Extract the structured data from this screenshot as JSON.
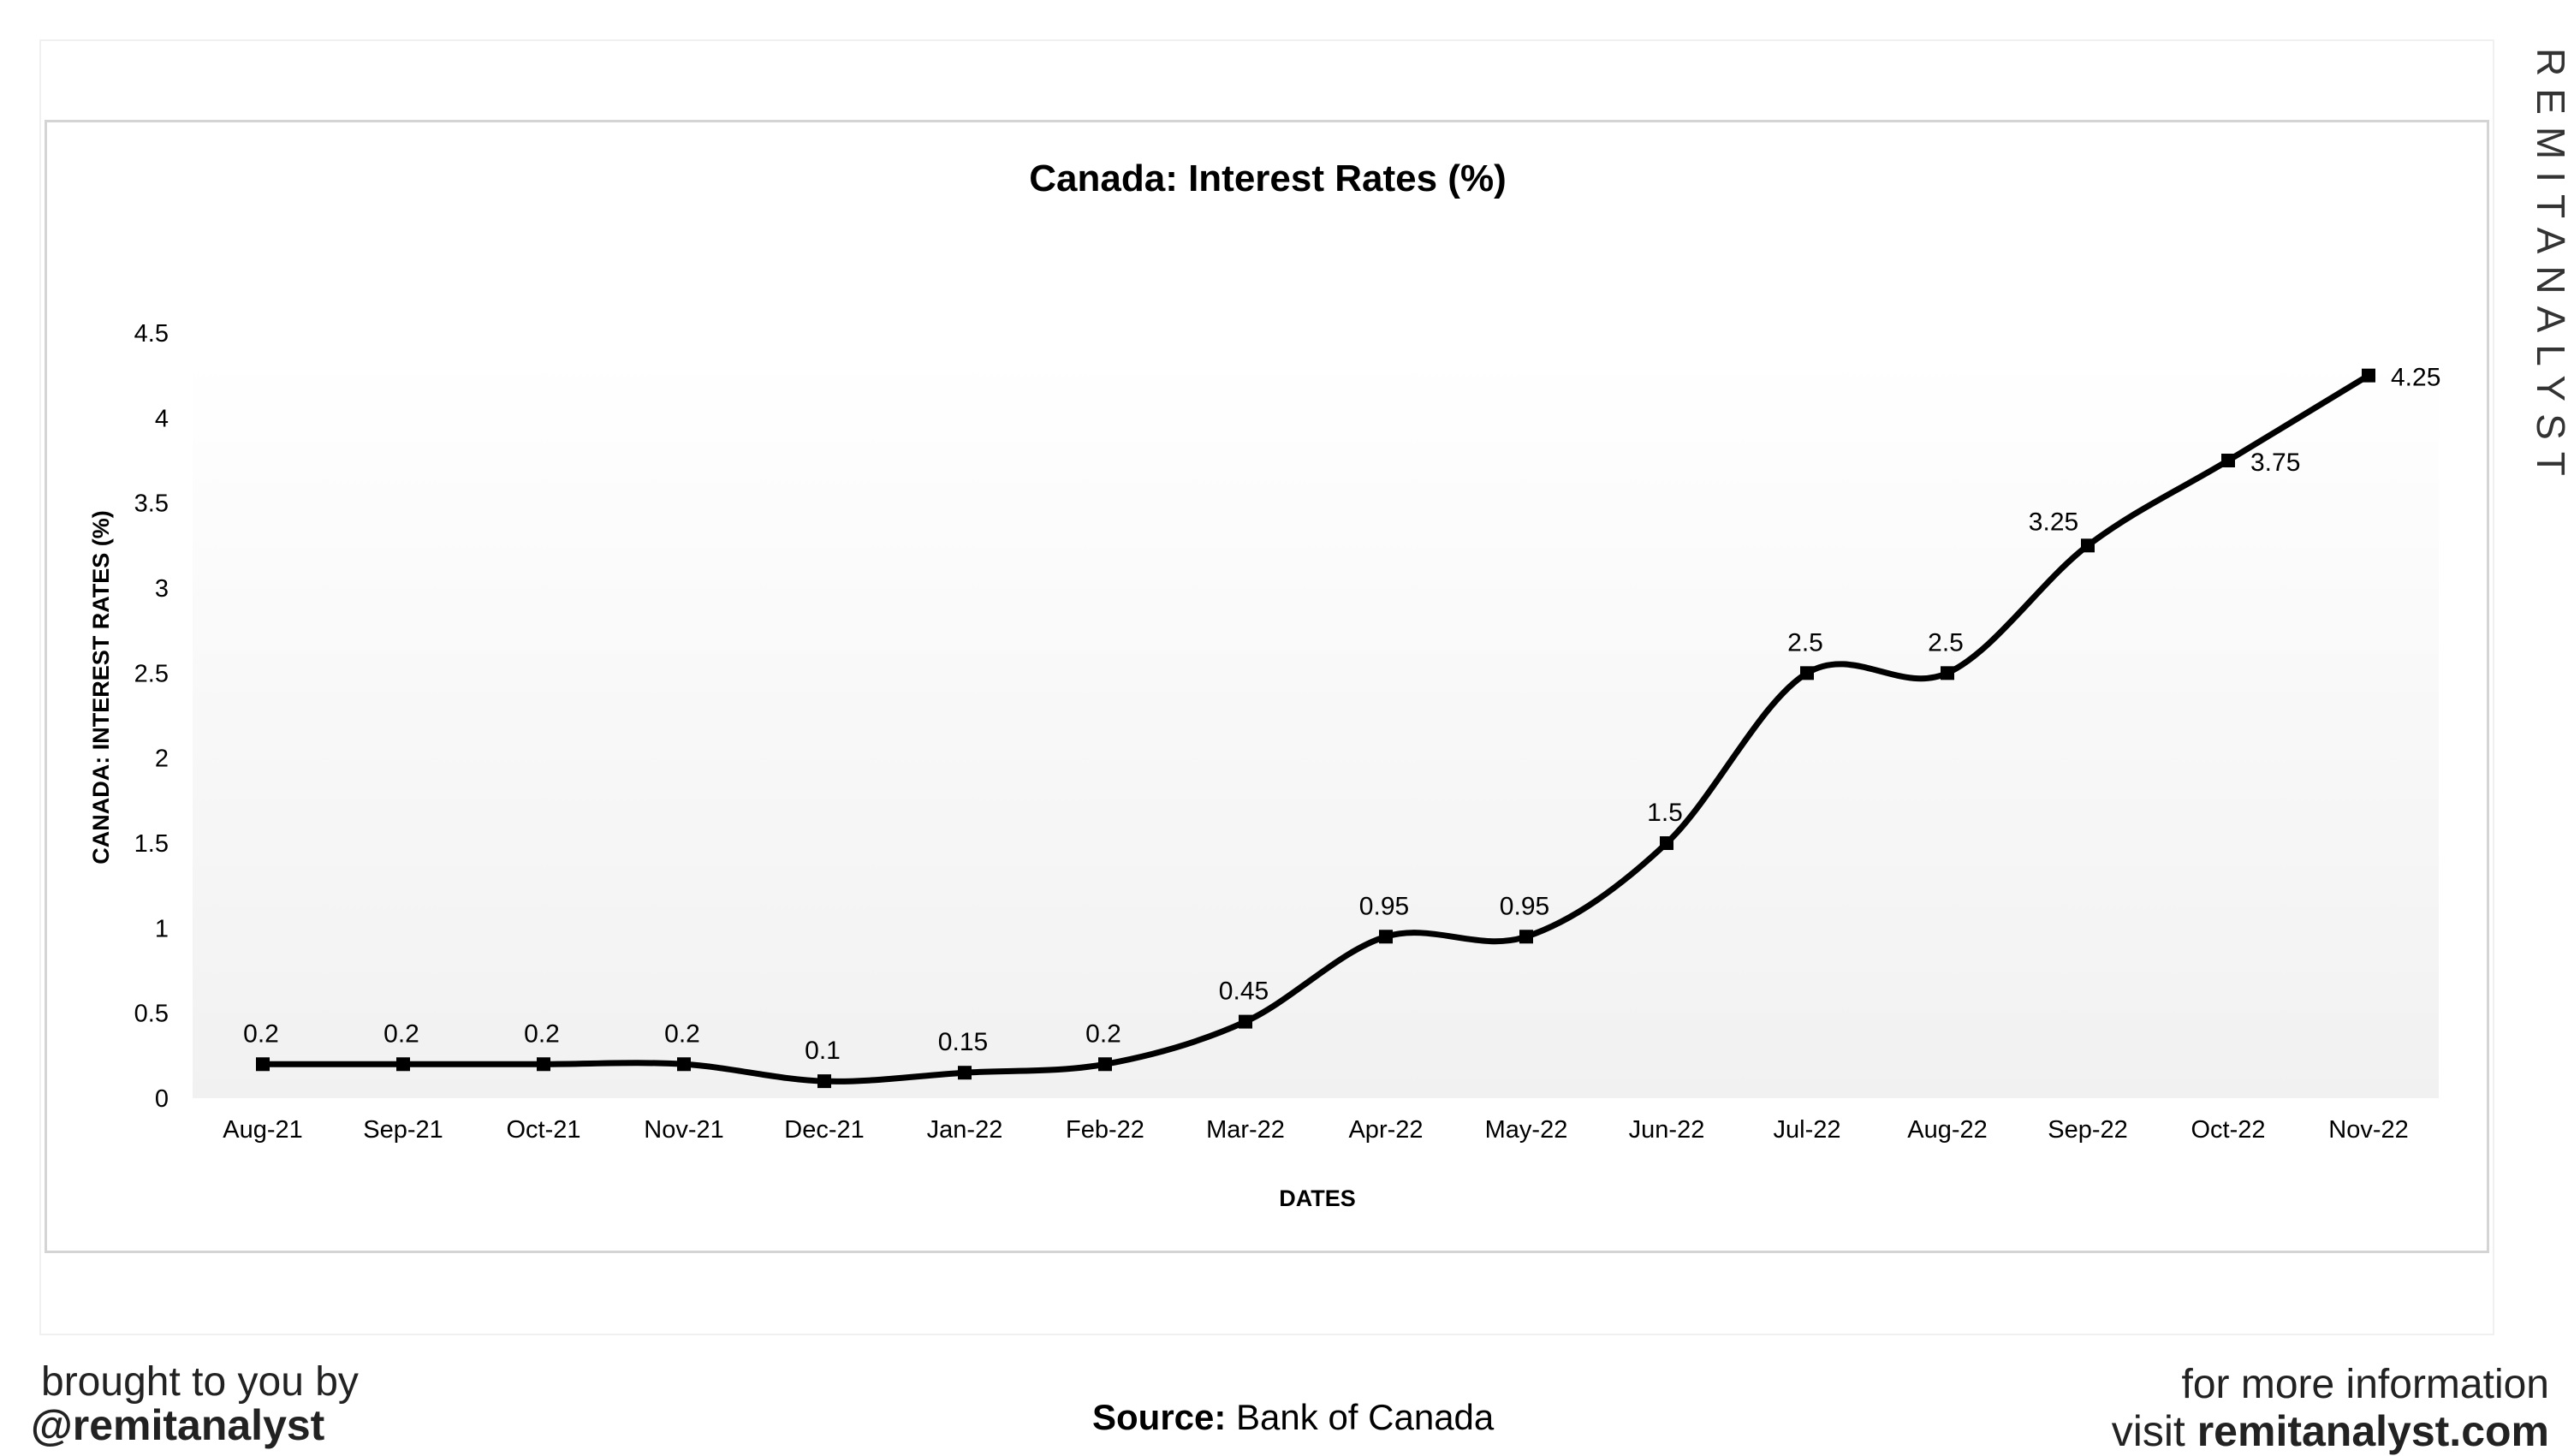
{
  "chart_data": {
    "type": "line",
    "title": "Canada:  Interest Rates (%)",
    "xlabel": "DATES",
    "ylabel": "CANADA: INTEREST RATES (%)",
    "categories": [
      "Aug-21",
      "Sep-21",
      "Oct-21",
      "Nov-21",
      "Dec-21",
      "Jan-22",
      "Feb-22",
      "Mar-22",
      "Apr-22",
      "May-22",
      "Jun-22",
      "Jul-22",
      "Aug-22",
      "Sep-22",
      "Oct-22",
      "Nov-22"
    ],
    "values": [
      0.2,
      0.2,
      0.2,
      0.2,
      0.1,
      0.15,
      0.2,
      0.45,
      0.95,
      0.95,
      1.5,
      2.5,
      2.5,
      3.25,
      3.75,
      4.25
    ],
    "data_labels": [
      "0.2",
      "0.2",
      "0.2",
      "0.2",
      "0.1",
      "0.15",
      "0.2",
      "0.45",
      "0.95",
      "0.95",
      "1.5",
      "2.5",
      "2.5",
      "3.25",
      "3.75",
      "4.25"
    ],
    "yticks": [
      "0",
      "0.5",
      "1",
      "1.5",
      "2",
      "2.5",
      "3",
      "3.5",
      "4",
      "4.5"
    ],
    "ylim": [
      0,
      4.5
    ],
    "smooth": true,
    "grid": false,
    "legend": "none",
    "line_color": "#000000",
    "plot_gradient": [
      "#ffffff",
      "#f1f1f1"
    ]
  },
  "branding": {
    "vertical_wordmark": "REMITANALYST",
    "brought_by": "brought to you by",
    "handle": "@remitanalyst",
    "source_label": "Source:",
    "source_value": "Bank of Canada",
    "more_info": "for more information",
    "visit_prefix": "visit ",
    "visit_site": "remitanalyst.com"
  }
}
